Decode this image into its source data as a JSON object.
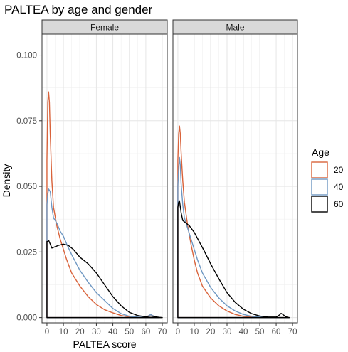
{
  "chart_data": {
    "type": "area",
    "title": "PALTEA by age and gender",
    "xlabel": "PALTEA score",
    "ylabel": "Density",
    "xlim": [
      -3,
      73
    ],
    "ylim": [
      -0.002,
      0.108
    ],
    "x_ticks": [
      0,
      10,
      20,
      30,
      40,
      50,
      60,
      70
    ],
    "x_tick_labels": [
      "0",
      "10",
      "20",
      "30",
      "40",
      "50",
      "60",
      "70"
    ],
    "y_ticks": [
      0,
      0.025,
      0.05,
      0.075,
      0.1
    ],
    "y_tick_labels": [
      "0.000",
      "0.025",
      "0.050",
      "0.075",
      "0.100"
    ],
    "grid": true,
    "legend": {
      "title": "Age",
      "position": "right"
    },
    "series_colors": {
      "20": "#d9633b",
      "40": "#6e97c2",
      "60": "#000000"
    },
    "facets": [
      {
        "label": "Female",
        "series": [
          {
            "name": "20",
            "points": [
              [
                0,
                0.06
              ],
              [
                0.5,
                0.082
              ],
              [
                1,
                0.086
              ],
              [
                1.5,
                0.082
              ],
              [
                2,
                0.07
              ],
              [
                3,
                0.052
              ],
              [
                4,
                0.042
              ],
              [
                6,
                0.035
              ],
              [
                8,
                0.03
              ],
              [
                10,
                0.026
              ],
              [
                12,
                0.022
              ],
              [
                15,
                0.017
              ],
              [
                20,
                0.012
              ],
              [
                25,
                0.008
              ],
              [
                30,
                0.005
              ],
              [
                35,
                0.003
              ],
              [
                40,
                0.0018
              ],
              [
                45,
                0.0008
              ],
              [
                50,
                0.0003
              ],
              [
                55,
                0.0001
              ],
              [
                60,
                0.0002
              ],
              [
                62,
                0.0008
              ],
              [
                63,
                0.0012
              ],
              [
                64,
                0.0008
              ],
              [
                66,
                0.0002
              ],
              [
                68,
                0
              ]
            ]
          },
          {
            "name": "40",
            "points": [
              [
                0,
                0.043
              ],
              [
                0.5,
                0.047
              ],
              [
                1,
                0.049
              ],
              [
                2,
                0.048
              ],
              [
                3,
                0.042
              ],
              [
                4,
                0.038
              ],
              [
                6,
                0.036
              ],
              [
                8,
                0.033
              ],
              [
                10,
                0.031
              ],
              [
                12,
                0.028
              ],
              [
                15,
                0.024
              ],
              [
                20,
                0.018
              ],
              [
                25,
                0.0135
              ],
              [
                30,
                0.0095
              ],
              [
                35,
                0.0065
              ],
              [
                40,
                0.0035
              ],
              [
                45,
                0.0015
              ],
              [
                50,
                0.0005
              ],
              [
                55,
                0.0002
              ],
              [
                60,
                0.0001
              ],
              [
                62,
                0.0008
              ],
              [
                63,
                0.0012
              ],
              [
                64,
                0.0008
              ],
              [
                66,
                0.0002
              ],
              [
                68,
                0
              ]
            ]
          },
          {
            "name": "60",
            "points": [
              [
                0,
                0.029
              ],
              [
                0.5,
                0.029
              ],
              [
                1,
                0.0295
              ],
              [
                2,
                0.028
              ],
              [
                3,
                0.0265
              ],
              [
                5,
                0.027
              ],
              [
                7,
                0.0275
              ],
              [
                10,
                0.028
              ],
              [
                13,
                0.0275
              ],
              [
                16,
                0.026
              ],
              [
                20,
                0.023
              ],
              [
                25,
                0.0205
              ],
              [
                30,
                0.017
              ],
              [
                35,
                0.0125
              ],
              [
                40,
                0.008
              ],
              [
                45,
                0.0045
              ],
              [
                50,
                0.002
              ],
              [
                55,
                0.0008
              ],
              [
                60,
                0.0003
              ],
              [
                63,
                0.0006
              ],
              [
                65,
                0.0004
              ],
              [
                68,
                0.0001
              ],
              [
                70,
                0
              ]
            ]
          }
        ]
      },
      {
        "label": "Male",
        "series": [
          {
            "name": "20",
            "points": [
              [
                0,
                0.06
              ],
              [
                0.5,
                0.07
              ],
              [
                1,
                0.073
              ],
              [
                1.5,
                0.07
              ],
              [
                2,
                0.063
              ],
              [
                3,
                0.052
              ],
              [
                4,
                0.044
              ],
              [
                6,
                0.035
              ],
              [
                8,
                0.028
              ],
              [
                10,
                0.022
              ],
              [
                12,
                0.017
              ],
              [
                15,
                0.012
              ],
              [
                20,
                0.0075
              ],
              [
                25,
                0.0045
              ],
              [
                30,
                0.0025
              ],
              [
                35,
                0.0012
              ],
              [
                40,
                0.0005
              ],
              [
                45,
                0.0002
              ],
              [
                50,
                0.0001
              ],
              [
                55,
                0
              ],
              [
                60,
                0
              ],
              [
                68,
                0
              ]
            ]
          },
          {
            "name": "40",
            "points": [
              [
                0,
                0.05
              ],
              [
                0.5,
                0.057
              ],
              [
                1,
                0.061
              ],
              [
                1.5,
                0.058
              ],
              [
                2,
                0.051
              ],
              [
                3,
                0.043
              ],
              [
                4,
                0.038
              ],
              [
                6,
                0.034
              ],
              [
                8,
                0.03
              ],
              [
                10,
                0.026
              ],
              [
                12,
                0.022
              ],
              [
                15,
                0.017
              ],
              [
                20,
                0.0115
              ],
              [
                25,
                0.0075
              ],
              [
                30,
                0.0045
              ],
              [
                35,
                0.0025
              ],
              [
                40,
                0.0012
              ],
              [
                45,
                0.0005
              ],
              [
                50,
                0.0002
              ],
              [
                55,
                0.0001
              ],
              [
                60,
                0
              ],
              [
                68,
                0
              ]
            ]
          },
          {
            "name": "60",
            "points": [
              [
                0,
                0.042
              ],
              [
                0.5,
                0.044
              ],
              [
                1,
                0.0445
              ],
              [
                2,
                0.04
              ],
              [
                3,
                0.037
              ],
              [
                5,
                0.036
              ],
              [
                7,
                0.035
              ],
              [
                10,
                0.0325
              ],
              [
                13,
                0.029
              ],
              [
                16,
                0.0255
              ],
              [
                20,
                0.0205
              ],
              [
                25,
                0.0148
              ],
              [
                30,
                0.0095
              ],
              [
                35,
                0.0058
              ],
              [
                40,
                0.0032
              ],
              [
                45,
                0.0015
              ],
              [
                50,
                0.0006
              ],
              [
                55,
                0.0002
              ],
              [
                60,
                0.0002
              ],
              [
                62,
                0.001
              ],
              [
                63,
                0.0016
              ],
              [
                64,
                0.0012
              ],
              [
                66,
                0.0003
              ],
              [
                68,
                0
              ]
            ]
          }
        ]
      }
    ]
  }
}
